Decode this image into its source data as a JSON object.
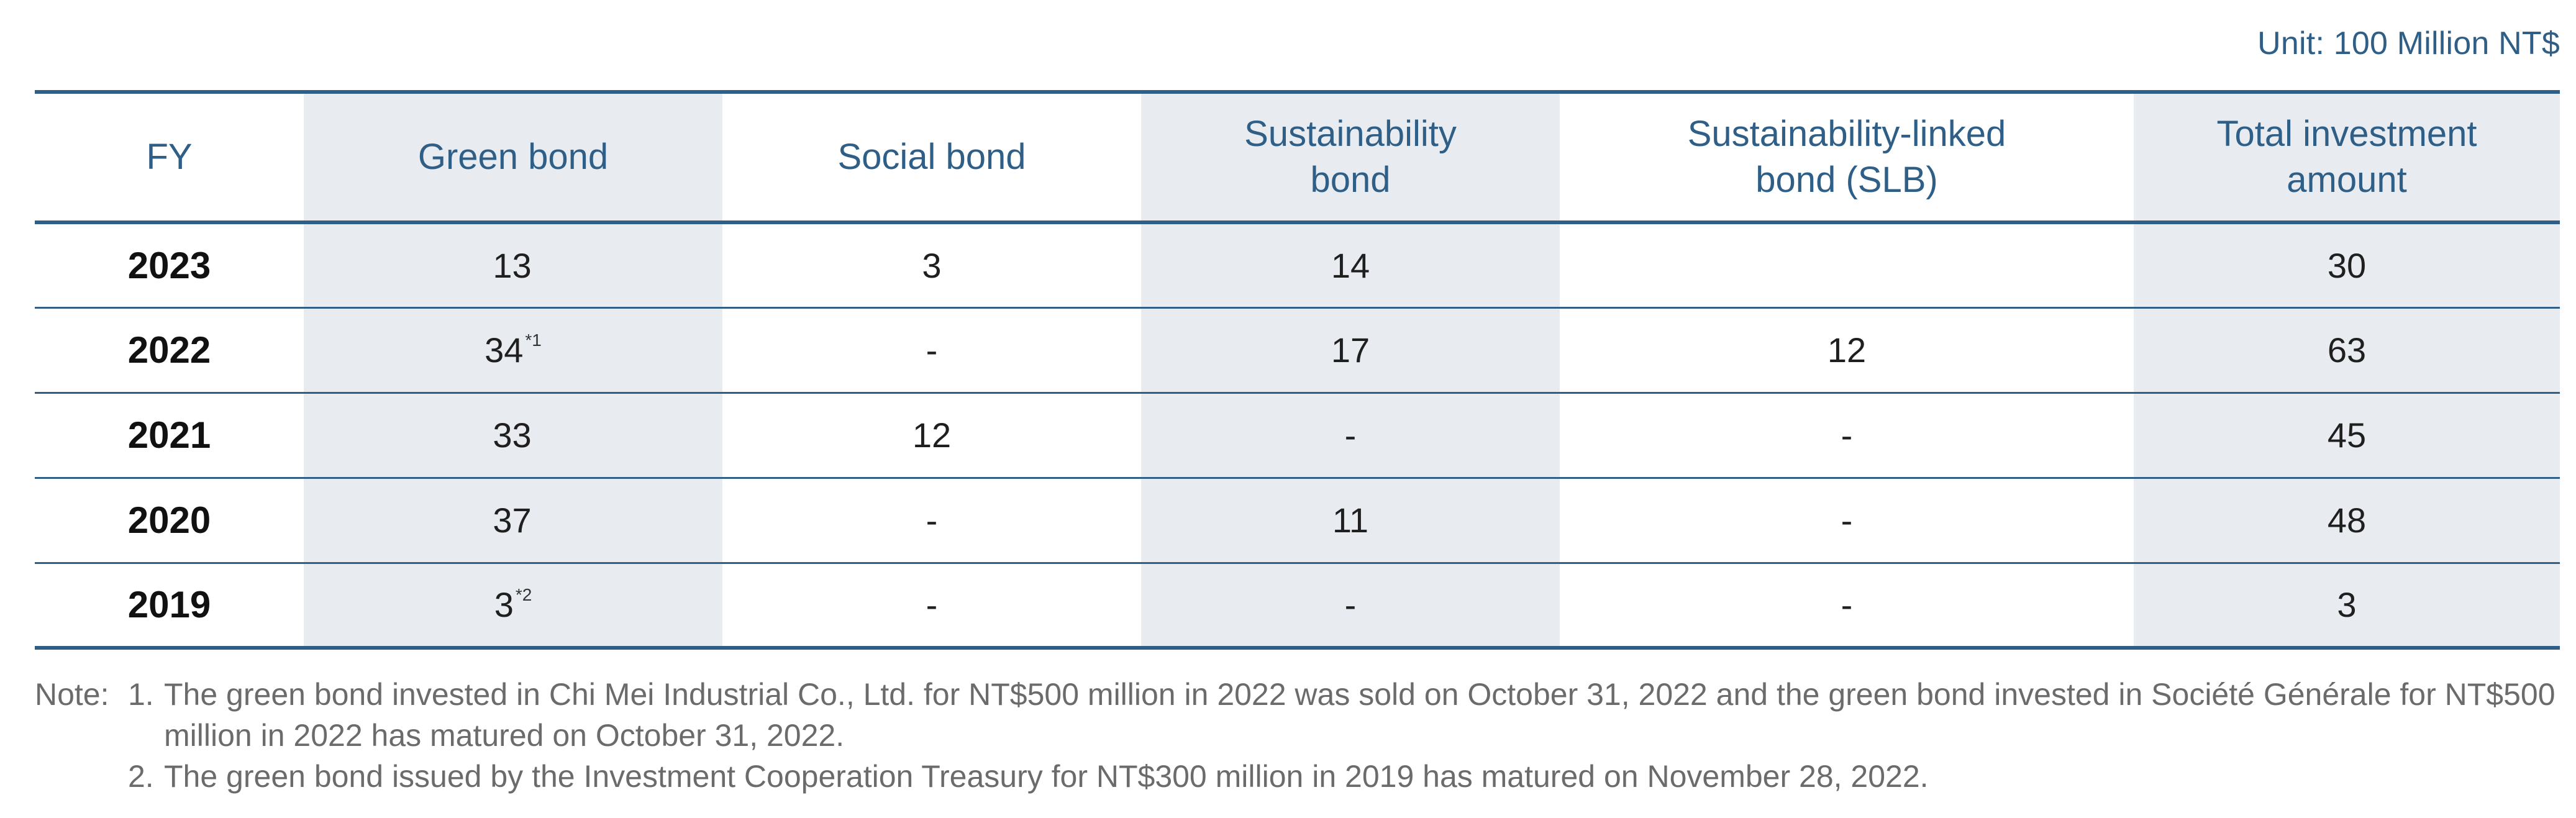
{
  "unit_label": "Unit: 100 Million NT$",
  "table": {
    "headers": {
      "fy": "FY",
      "green": "Green bond",
      "social": "Social bond",
      "sustainability": "Sustainability bond",
      "slb": "Sustainability-linked bond (SLB)",
      "total": "Total investment amount"
    },
    "rows": [
      {
        "fy": "2023",
        "green": "13",
        "green_note": "",
        "social": "3",
        "sustainability": "14",
        "slb": "",
        "total": "30"
      },
      {
        "fy": "2022",
        "green": "34",
        "green_note": "*1",
        "social": "-",
        "sustainability": "17",
        "slb": "12",
        "total": "63"
      },
      {
        "fy": "2021",
        "green": "33",
        "green_note": "",
        "social": "12",
        "sustainability": "-",
        "slb": "-",
        "total": "45"
      },
      {
        "fy": "2020",
        "green": "37",
        "green_note": "",
        "social": "-",
        "sustainability": "11",
        "slb": "-",
        "total": "48"
      },
      {
        "fy": "2019",
        "green": "3",
        "green_note": "*2",
        "social": "-",
        "sustainability": "-",
        "slb": "-",
        "total": "3"
      }
    ]
  },
  "notes": {
    "label": "Note:",
    "items": [
      {
        "num": "1.",
        "text": "The green bond invested in Chi Mei Industrial Co., Ltd. for NT$500 million in 2022 was sold on October 31, 2022 and the green bond invested in Société Générale for NT$500 million in 2022 has matured on October 31, 2022."
      },
      {
        "num": "2.",
        "text": "The green bond issued by the Investment Cooperation Treasury for NT$300 million in 2019 has matured on November 28, 2022."
      }
    ]
  }
}
